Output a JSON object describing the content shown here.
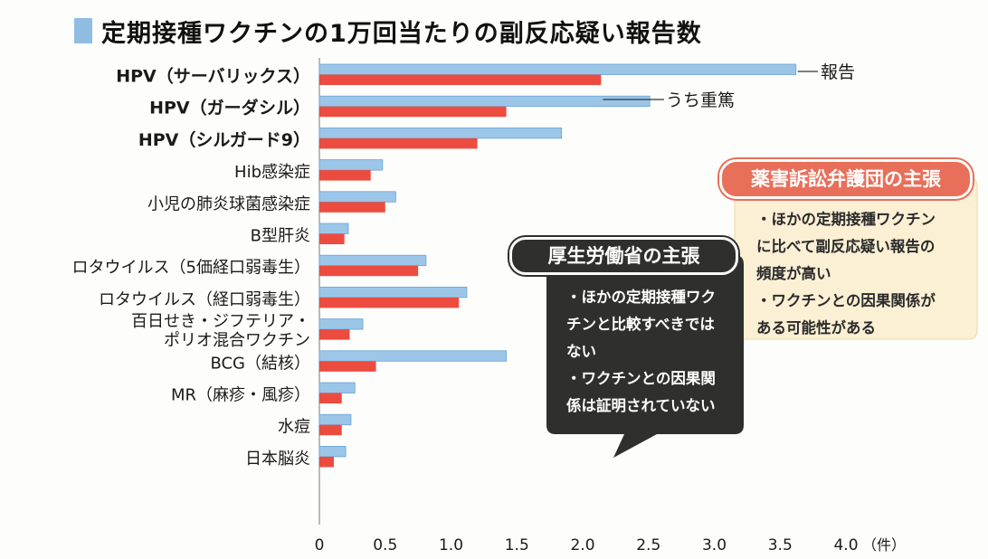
{
  "title": "定期接種ワクチンの1万回当たりの副反応疑い報告数",
  "colors": {
    "report": "#9cc6e8",
    "report_dark": "#6aa3d4",
    "serious": "#ec4c3f",
    "title_mark": "#8fbde2",
    "mhlw_bg": "#2f2f2d",
    "law_bg": "#e8705a",
    "law_box": "#fbefd4"
  },
  "chart_data": {
    "type": "bar",
    "orientation": "horizontal",
    "categories": [
      "HPV（サーバリックス）",
      "HPV（ガーダシル）",
      "HPV（シルガード9）",
      "Hib感染症",
      "小児の肺炎球菌感染症",
      "B型肝炎",
      "ロタウイルス（5価経口弱毒生）",
      "ロタウイルス（経口弱毒生）",
      "百日せき・ジフテリア・ポリオ混合ワクチン",
      "BCG（結核）",
      "MR（麻疹・風疹）",
      "水痘",
      "日本脳炎"
    ],
    "category_lines": [
      [
        "HPV（サーバリックス）"
      ],
      [
        "HPV（ガーダシル）"
      ],
      [
        "HPV（シルガード9）"
      ],
      [
        "Hib感染症"
      ],
      [
        "小児の肺炎球菌感染症"
      ],
      [
        "B型肝炎"
      ],
      [
        "ロタウイルス（5価経口弱毒生）"
      ],
      [
        "ロタウイルス（経口弱毒生）"
      ],
      [
        "百日せき・ジフテリア・",
        "ポリオ混合ワクチン"
      ],
      [
        "BCG（結核）"
      ],
      [
        "MR（麻疹・風疹）"
      ],
      [
        "水痘"
      ],
      [
        "日本脳炎"
      ]
    ],
    "series": [
      {
        "name": "報告",
        "values": [
          3.62,
          2.51,
          1.84,
          0.48,
          0.58,
          0.22,
          0.81,
          1.12,
          0.33,
          1.42,
          0.27,
          0.24,
          0.2
        ]
      },
      {
        "name": "うち重篤",
        "values": [
          2.14,
          1.42,
          1.2,
          0.39,
          0.5,
          0.19,
          0.75,
          1.06,
          0.23,
          0.43,
          0.17,
          0.17,
          0.11
        ]
      }
    ],
    "xlim": [
      0,
      4.5
    ],
    "xticks": [
      "0",
      "0.5",
      "1.0",
      "1.5",
      "2.0",
      "2.5",
      "3.0",
      "3.5",
      "4.0"
    ],
    "xunit": "（件）",
    "legend_labels": [
      "報告",
      "うち重篤"
    ]
  },
  "mhlw": {
    "heading": "厚生労働省の主張",
    "bullets": [
      "・ほかの定期接種ワクチンと比較すべきではない",
      "・ワクチンとの因果関係は証明されていない"
    ]
  },
  "lawyers": {
    "heading": "薬害訴訟弁護団の主張",
    "bullets": [
      "・ほかの定期接種ワクチンに比べて副反応疑い報告の頻度が高い",
      "・ワクチンとの因果関係がある可能性がある"
    ]
  }
}
